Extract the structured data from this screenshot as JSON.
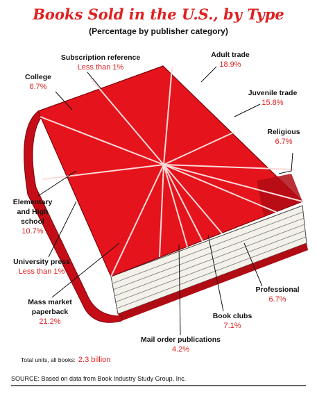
{
  "chart_data": {
    "type": "pie",
    "title": "Books Sold in the U.S., by Type",
    "subtitle": "(Percentage by publisher category)",
    "slices": [
      {
        "label": "Subscription reference",
        "value_text": "Less than 1%",
        "value": 0.5
      },
      {
        "label": "Adult trade",
        "value_text": "18.9%",
        "value": 18.9
      },
      {
        "label": "Juvenile trade",
        "value_text": "15.8%",
        "value": 15.8
      },
      {
        "label": "Religious",
        "value_text": "6.7%",
        "value": 6.7
      },
      {
        "label": "Professional",
        "value_text": "6.7%",
        "value": 6.7
      },
      {
        "label": "Book clubs",
        "value_text": "7.1%",
        "value": 7.1
      },
      {
        "label": "Mail order publications",
        "value_text": "4.2%",
        "value": 4.2
      },
      {
        "label": "Mass market paperback",
        "value_text": "21.2%",
        "value": 21.2
      },
      {
        "label": "University press",
        "value_text": "Less than 1%",
        "value": 0.5
      },
      {
        "label": "Elementary and High school",
        "value_text": "10.7%",
        "value": 10.7
      },
      {
        "label": "College",
        "value_text": "6.7%",
        "value": 6.7
      }
    ],
    "total_label": "Total units, all books:",
    "total_value": "2.3 billion",
    "source": "SOURCE: Based on data from Book Industry Study Group, Inc.",
    "colors": {
      "cover": "#e5141c",
      "cover_dark": "#b00c14",
      "spine": "#c40d16",
      "accent": "#e02020",
      "pages": "#f3f1ea"
    }
  }
}
